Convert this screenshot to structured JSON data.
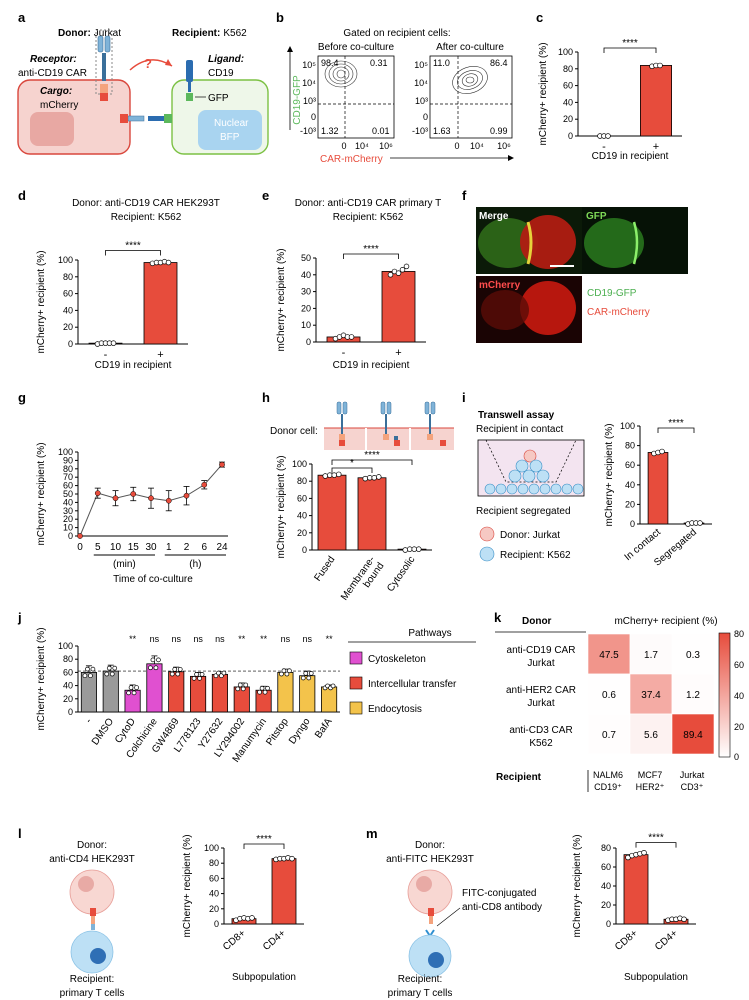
{
  "panels": {
    "a": "a",
    "b": "b",
    "c": "c",
    "d": "d",
    "e": "e",
    "f": "f",
    "g": "g",
    "h": "h",
    "i": "i",
    "j": "j",
    "k": "k",
    "l": "l",
    "m": "m"
  },
  "common": {
    "y_label": "mCherry+ recipient (%)",
    "x_label_cd19": "CD19 in recipient",
    "minus": "-",
    "plus": "+",
    "sig4": "****",
    "sig1": "*"
  },
  "panel_a": {
    "donor_label": "Donor:",
    "donor_value": "Jurkat",
    "recipient_label": "Recipient:",
    "recipient_value": "K562",
    "receptor_label": "Receptor:",
    "receptor_value": "anti-CD19 CAR",
    "ligand_label": "Ligand:",
    "ligand_value": "CD19",
    "cargo_label": "Cargo:",
    "cargo_value": "mCherry",
    "gfp": "GFP",
    "nuclear": "Nuclear",
    "bfp": "BFP",
    "question": "?"
  },
  "panel_b": {
    "title": "Gated on recipient cells:",
    "before": "Before co-culture",
    "after": "After co-culture",
    "ylabel": "CD19-GFP",
    "xlabel": "CAR-mCherry",
    "before_quadrants": [
      "98.4",
      "0.31",
      "1.32",
      "0.01"
    ],
    "after_quadrants": [
      "11.0",
      "86.4",
      "1.63",
      "0.99"
    ],
    "yticks": [
      "10⁵",
      "10⁴",
      "10³",
      "0",
      "-10³"
    ],
    "xticks": [
      "0",
      "10⁴",
      "10⁶"
    ]
  },
  "panel_f": {
    "merge": "Merge",
    "gfp": "GFP",
    "mcherry": "mCherry",
    "legend_gfp": "CD19-GFP",
    "legend_mcherry": "CAR-mCherry"
  },
  "panel_h": {
    "donor_cell": "Donor cell:"
  },
  "panel_i": {
    "title": "Transwell assay",
    "contact": "Recipient in contact",
    "segregated": "Recipient segregated",
    "legend_donor": "Donor: Jurkat",
    "legend_recipient": "Recipient: K562"
  },
  "panel_j": {
    "pathways_title": "Pathways",
    "legend": [
      "Cytoskeleton",
      "Intercellular transfer",
      "Endocytosis"
    ]
  },
  "panel_k": {
    "donor_header": "Donor",
    "value_header": "mCherry+ recipient (%)",
    "recipient_header": "Recipient",
    "rows": [
      {
        "line1": "anti-CD19 CAR",
        "line2": "Jurkat"
      },
      {
        "line1": "anti-HER2 CAR",
        "line2": "Jurkat"
      },
      {
        "line1": "anti-CD3 CAR",
        "line2": "K562"
      }
    ],
    "cols": [
      {
        "line1": "NALM6",
        "line2": "CD19⁺"
      },
      {
        "line1": "MCF7",
        "line2": "HER2⁺"
      },
      {
        "line1": "Jurkat",
        "line2": "CD3⁺"
      }
    ],
    "values": [
      [
        47.5,
        1.7,
        0.3
      ],
      [
        0.6,
        37.4,
        1.2
      ],
      [
        0.7,
        5.6,
        89.4
      ]
    ],
    "value_labels": [
      [
        "47.5",
        "1.7",
        "0.3"
      ],
      [
        "0.6",
        "37.4",
        "1.2"
      ],
      [
        "0.7",
        "5.6",
        "89.4"
      ]
    ],
    "scale_ticks": [
      "80",
      "60",
      "40",
      "20",
      "0"
    ]
  },
  "panel_l": {
    "donor_label": "Donor:",
    "donor_value": "anti-CD4 HEK293T",
    "recipient_label": "Recipient:",
    "recipient_value": "primary T cells"
  },
  "panel_m": {
    "donor_label": "Donor:",
    "donor_value": "anti-FITC HEK293T",
    "antibody_line1": "FITC-conjugated",
    "antibody_line2": "anti-CD8 antibody",
    "recipient_label": "Recipient:",
    "recipient_value": "primary T cells"
  },
  "chart_data": [
    {
      "id": "c",
      "type": "bar",
      "title": "",
      "xlabel": "CD19 in recipient",
      "ylabel": "mCherry+ recipient (%)",
      "ylim": [
        0,
        100
      ],
      "yticks": [
        "0",
        "20",
        "40",
        "60",
        "80",
        "100"
      ],
      "categories": [
        "-",
        "+"
      ],
      "values": [
        0,
        84
      ],
      "replicates": [
        [
          0,
          0,
          0
        ],
        [
          83,
          84,
          84
        ]
      ],
      "significance": "****"
    },
    {
      "id": "d",
      "type": "bar",
      "title": "Donor: anti-CD19 CAR HEK293T",
      "subtitle": "Recipient: K562",
      "xlabel": "CD19 in recipient",
      "ylabel": "mCherry+ recipient (%)",
      "ylim": [
        0,
        100
      ],
      "yticks": [
        "0",
        "20",
        "40",
        "60",
        "80",
        "100"
      ],
      "categories": [
        "-",
        "+"
      ],
      "values": [
        1,
        97
      ],
      "replicates": [
        [
          0,
          1,
          1,
          1,
          1
        ],
        [
          96,
          97,
          97,
          98,
          97
        ]
      ],
      "significance": "****"
    },
    {
      "id": "e",
      "type": "bar",
      "title": "Donor: anti-CD19 CAR primary T",
      "subtitle": "Recipient: K562",
      "xlabel": "CD19 in recipient",
      "ylabel": "mCherry+ recipient (%)",
      "ylim": [
        0,
        50
      ],
      "yticks": [
        "0",
        "10",
        "20",
        "30",
        "40",
        "50"
      ],
      "categories": [
        "-",
        "+"
      ],
      "values": [
        3,
        42
      ],
      "replicates": [
        [
          2,
          3,
          4,
          3,
          3
        ],
        [
          40,
          42,
          41,
          43,
          45
        ]
      ],
      "significance": "****"
    },
    {
      "id": "g",
      "type": "line",
      "title": "",
      "xlabel": "Time of co-culture",
      "ylabel": "mCherry+ recipient (%)",
      "ylim": [
        0,
        100
      ],
      "yticks": [
        "0",
        "10",
        "20",
        "30",
        "40",
        "50",
        "60",
        "70",
        "80",
        "90",
        "100"
      ],
      "categories": [
        "0",
        "5",
        "10",
        "15",
        "30",
        "1",
        "2",
        "6",
        "24"
      ],
      "unit_groups": [
        {
          "label": "(min)",
          "from": 1,
          "to": 4
        },
        {
          "label": "(h)",
          "from": 5,
          "to": 8
        }
      ],
      "values": [
        0,
        51,
        45,
        50,
        45,
        42,
        48,
        61,
        85
      ],
      "errors": [
        0,
        6,
        9,
        8,
        12,
        12,
        11,
        5,
        3
      ]
    },
    {
      "id": "h",
      "type": "bar",
      "title": "",
      "xlabel": "",
      "ylabel": "mCherry+ recipient (%)",
      "ylim": [
        0,
        100
      ],
      "yticks": [
        "0",
        "20",
        "40",
        "60",
        "80",
        "100"
      ],
      "categories": [
        "Fused",
        "Membrane-bound",
        "Cytosolic"
      ],
      "category_labels": [
        [
          "Fused"
        ],
        [
          "Membrane-",
          "bound"
        ],
        [
          "Cytosolic"
        ]
      ],
      "values": [
        87,
        84,
        1
      ],
      "replicates": [
        [
          86,
          87,
          87,
          88
        ],
        [
          83,
          84,
          84,
          85
        ],
        [
          0,
          1,
          1,
          1
        ]
      ],
      "significance": [
        {
          "pair": [
            0,
            2
          ],
          "label": "****"
        },
        {
          "pair": [
            0,
            1
          ],
          "label": "*"
        }
      ]
    },
    {
      "id": "i",
      "type": "bar",
      "title": "",
      "xlabel": "",
      "ylabel": "mCherry+ recipient (%)",
      "ylim": [
        0,
        100
      ],
      "yticks": [
        "0",
        "20",
        "40",
        "60",
        "80",
        "100"
      ],
      "categories": [
        "In contact",
        "Segregated"
      ],
      "values": [
        73,
        1
      ],
      "replicates": [
        [
          72,
          73,
          74
        ],
        [
          0,
          1,
          1,
          1
        ]
      ],
      "significance": "****"
    },
    {
      "id": "j",
      "type": "bar",
      "title": "",
      "xlabel": "",
      "ylabel": "mCherry+ recipient (%)",
      "ylim": [
        0,
        100
      ],
      "yticks": [
        "0",
        "20",
        "40",
        "60",
        "80",
        "100"
      ],
      "reference_line": 62,
      "categories": [
        "-",
        "DMSO",
        "CytoD",
        "Colchicine",
        "GW4869",
        "L778123",
        "Y27632",
        "LY294002",
        "Manumycin",
        "Pitstop",
        "Dyngo",
        "BafA"
      ],
      "values": [
        60,
        62,
        33,
        73,
        61,
        54,
        57,
        38,
        33,
        60,
        55,
        38
      ],
      "errors": [
        10,
        9,
        8,
        12,
        7,
        6,
        4,
        6,
        6,
        5,
        7,
        3
      ],
      "pathways": [
        "control",
        "control",
        "Cytoskeleton",
        "Cytoskeleton",
        "Intercellular transfer",
        "Intercellular transfer",
        "Intercellular transfer",
        "Intercellular transfer",
        "Intercellular transfer",
        "Endocytosis",
        "Endocytosis",
        "Endocytosis"
      ],
      "significance": [
        "",
        "",
        "**",
        "ns",
        "ns",
        "ns",
        "ns",
        "**",
        "**",
        "ns",
        "ns",
        "**"
      ]
    },
    {
      "id": "k",
      "type": "heatmap",
      "title": "mCherry+ recipient (%)",
      "rows": [
        "anti-CD19 CAR Jurkat",
        "anti-HER2 CAR Jurkat",
        "anti-CD3 CAR K562"
      ],
      "cols": [
        "NALM6 CD19+",
        "MCF7 HER2+",
        "Jurkat CD3+"
      ],
      "values": [
        [
          47.5,
          1.7,
          0.3
        ],
        [
          0.6,
          37.4,
          1.2
        ],
        [
          0.7,
          5.6,
          89.4
        ]
      ],
      "range": [
        0,
        80
      ]
    },
    {
      "id": "l",
      "type": "bar",
      "title": "",
      "xlabel": "Subpopulation",
      "ylabel": "mCherry+ recipient (%)",
      "ylim": [
        0,
        100
      ],
      "yticks": [
        "0",
        "20",
        "40",
        "60",
        "80",
        "100"
      ],
      "categories": [
        "CD8+",
        "CD4+"
      ],
      "values": [
        7,
        86
      ],
      "replicates": [
        [
          5,
          7,
          8,
          7,
          8
        ],
        [
          85,
          86,
          86,
          87,
          86
        ]
      ],
      "significance": "****"
    },
    {
      "id": "m",
      "type": "bar",
      "title": "",
      "xlabel": "Subpopulation",
      "ylabel": "mCherry+ recipient (%)",
      "ylim": [
        0,
        80
      ],
      "yticks": [
        "0",
        "20",
        "40",
        "60",
        "80"
      ],
      "categories": [
        "CD8+",
        "CD4+"
      ],
      "values": [
        73,
        5
      ],
      "replicates": [
        [
          70,
          72,
          73,
          74,
          75
        ],
        [
          4,
          5,
          5,
          6,
          5
        ]
      ],
      "significance": "****"
    }
  ]
}
